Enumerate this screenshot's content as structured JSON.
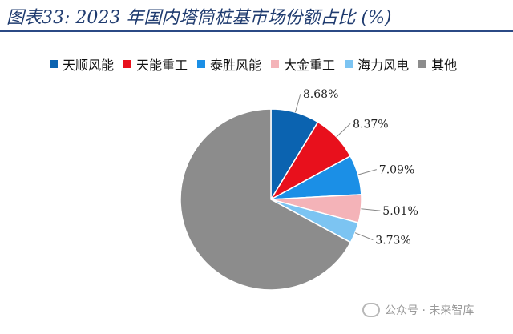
{
  "title": "图表33:  2023 年国内塔筒桩基市场份额占比 (%)",
  "chart_data": {
    "type": "pie",
    "title": "图表33:  2023 年国内塔筒桩基市场份额占比 (%)",
    "start_angle_deg": 0,
    "direction": "clockwise",
    "slices": [
      {
        "name": "天顺风能",
        "value": 8.68,
        "label": "8.68%",
        "color": "#0b63b0"
      },
      {
        "name": "天能重工",
        "value": 8.37,
        "label": "8.37%",
        "color": "#e8101c"
      },
      {
        "name": "泰胜风能",
        "value": 7.09,
        "label": "7.09%",
        "color": "#1b8fe6"
      },
      {
        "name": "大金重工",
        "value": 5.01,
        "label": "5.01%",
        "color": "#f4b3b8"
      },
      {
        "name": "海力风电",
        "value": 3.73,
        "label": "3.73%",
        "color": "#7cc4f2"
      },
      {
        "name": "其他",
        "value": 67.12,
        "label": "",
        "color": "#8c8c8c"
      }
    ]
  },
  "watermark": {
    "text": "公众号 · 未来智库"
  }
}
